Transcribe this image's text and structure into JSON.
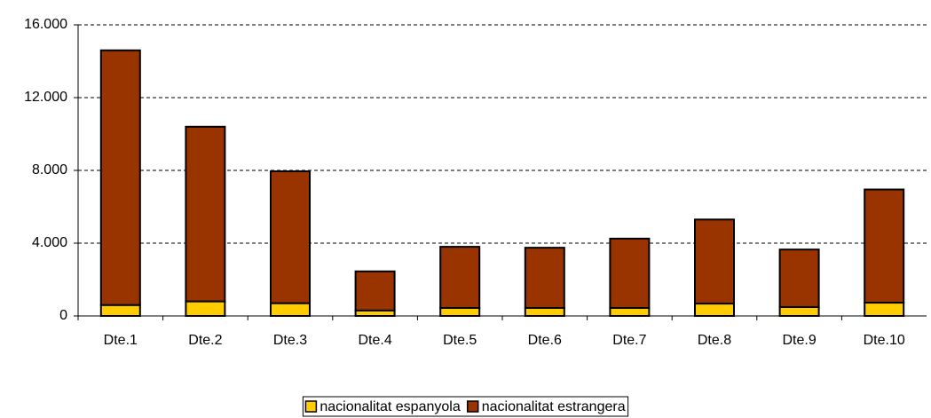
{
  "chart_data": {
    "type": "stacked_bar",
    "categories": [
      "Dte.1",
      "Dte.2",
      "Dte.3",
      "Dte.4",
      "Dte.5",
      "Dte.6",
      "Dte.7",
      "Dte.8",
      "Dte.9",
      "Dte.10"
    ],
    "series": [
      {
        "name": "nacionalitat espanyola",
        "color": "#ffcc00",
        "values": [
          600,
          800,
          700,
          300,
          440,
          440,
          440,
          680,
          490,
          730
        ]
      },
      {
        "name": "nacionalitat estrangera",
        "color": "#993300",
        "values": [
          14000,
          9600,
          7250,
          2150,
          3360,
          3310,
          3810,
          4620,
          3160,
          6220
        ]
      }
    ],
    "ylim": [
      0,
      16000
    ],
    "yticks": [
      0,
      {
        "value": 4000,
        "label": "4.000"
      },
      {
        "value": 8000,
        "label": "8.000"
      },
      {
        "value": 12000,
        "label": "12.000"
      },
      {
        "value": 16000,
        "label": "16.000"
      }
    ],
    "grid": true,
    "legend": "bottom"
  }
}
